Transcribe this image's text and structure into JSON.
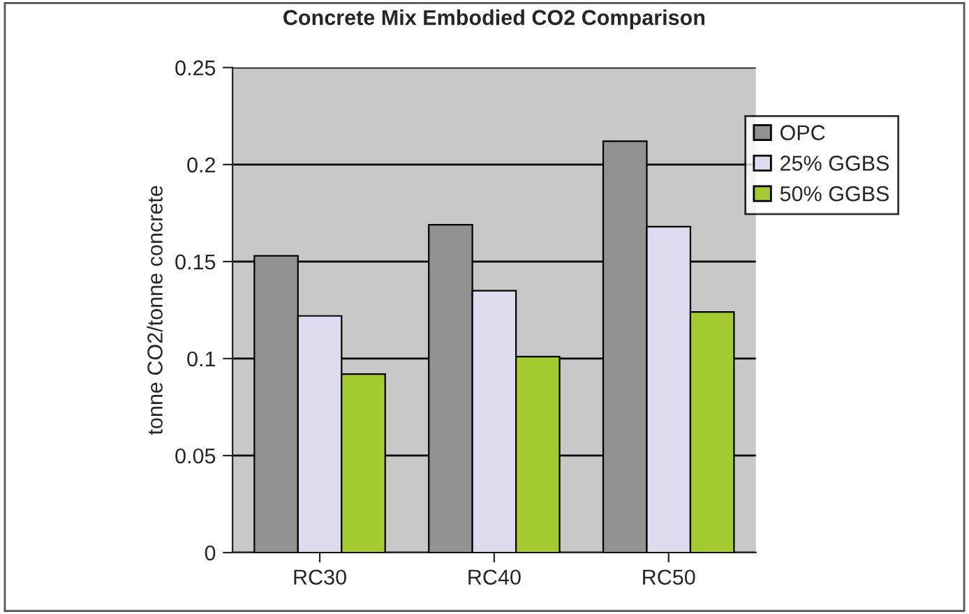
{
  "chart_data": {
    "type": "bar",
    "title": "Concrete Mix Embodied CO2 Comparison",
    "ylabel": "tonne CO2/tonne concrete",
    "categories": [
      "RC30",
      "RC40",
      "RC50"
    ],
    "series": [
      {
        "name": "OPC",
        "color": "#929292",
        "values": [
          0.153,
          0.169,
          0.212
        ]
      },
      {
        "name": "25% GGBS",
        "color": "#dcdcee",
        "values": [
          0.122,
          0.135,
          0.168
        ]
      },
      {
        "name": "50% GGBS",
        "color": "#a4cb32",
        "values": [
          0.092,
          0.101,
          0.124
        ]
      }
    ],
    "ylim": [
      0,
      0.25
    ],
    "yticks": [
      0,
      0.05,
      0.1,
      {
        "value": 0.15,
        "label": "0.15"
      },
      0.2,
      0.25
    ],
    "grid": "y",
    "legend": "top right"
  }
}
